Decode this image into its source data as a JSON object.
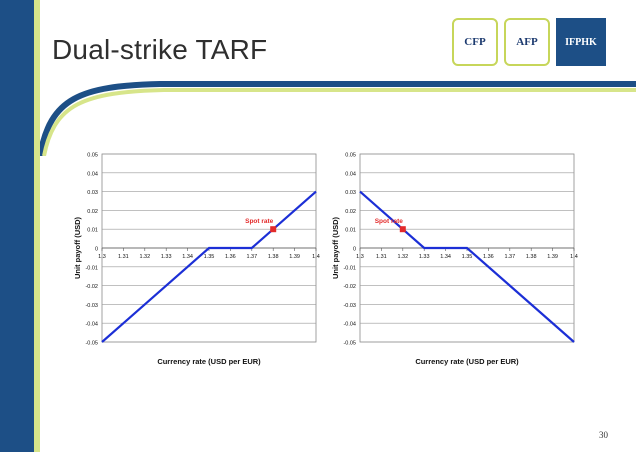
{
  "slide": {
    "title": "Dual-strike TARF",
    "page_number": "30"
  },
  "logos": [
    {
      "label": "CFP"
    },
    {
      "label": "AFP"
    },
    {
      "label": "IFPHK"
    }
  ],
  "colors": {
    "left_bar": "#1d4f86",
    "accent_bar": "#d7e58a",
    "series_line": "#1c2fd6",
    "spot_marker": "#e32a2a",
    "spot_label": "#e32a2a"
  },
  "chart_data": [
    {
      "type": "line",
      "x_ticks": [
        "1.3",
        "1.31",
        "1.32",
        "1.33",
        "1.34",
        "1.35",
        "1.36",
        "1.37",
        "1.38",
        "1.39",
        "1.4"
      ],
      "y_ticks": [
        "0.05",
        "0.04",
        "0.03",
        "0.02",
        "0.01",
        "0",
        "-0.01",
        "-0.02",
        "-0.03",
        "-0.04",
        "-0.05"
      ],
      "xlim": [
        1.3,
        1.4
      ],
      "ylim": [
        -0.05,
        0.05
      ],
      "xlabel": "Currency rate (USD per EUR)",
      "ylabel": "Unit payoff (USD)",
      "series": [
        {
          "x": [
            1.3,
            1.35,
            1.37,
            1.4
          ],
          "y": [
            -0.05,
            0,
            0,
            0.03
          ]
        }
      ],
      "annotation": {
        "label": "Spot rate",
        "x": 1.38,
        "y": 0.01
      },
      "grid": true
    },
    {
      "type": "line",
      "x_ticks": [
        "1.3",
        "1.31",
        "1.32",
        "1.33",
        "1.34",
        "1.35",
        "1.36",
        "1.37",
        "1.38",
        "1.39",
        "1.4"
      ],
      "y_ticks": [
        "0.05",
        "0.04",
        "0.03",
        "0.02",
        "0.01",
        "0",
        "-0.01",
        "-0.02",
        "-0.03",
        "-0.04",
        "-0.05"
      ],
      "xlim": [
        1.3,
        1.4
      ],
      "ylim": [
        -0.05,
        0.05
      ],
      "xlabel": "Currency rate (USD per EUR)",
      "ylabel": "Unit payoff (USD)",
      "series": [
        {
          "x": [
            1.3,
            1.33,
            1.35,
            1.4
          ],
          "y": [
            0.03,
            0,
            0,
            -0.05
          ]
        }
      ],
      "annotation": {
        "label": "Spot rate",
        "x": 1.32,
        "y": 0.01
      },
      "grid": true
    }
  ]
}
